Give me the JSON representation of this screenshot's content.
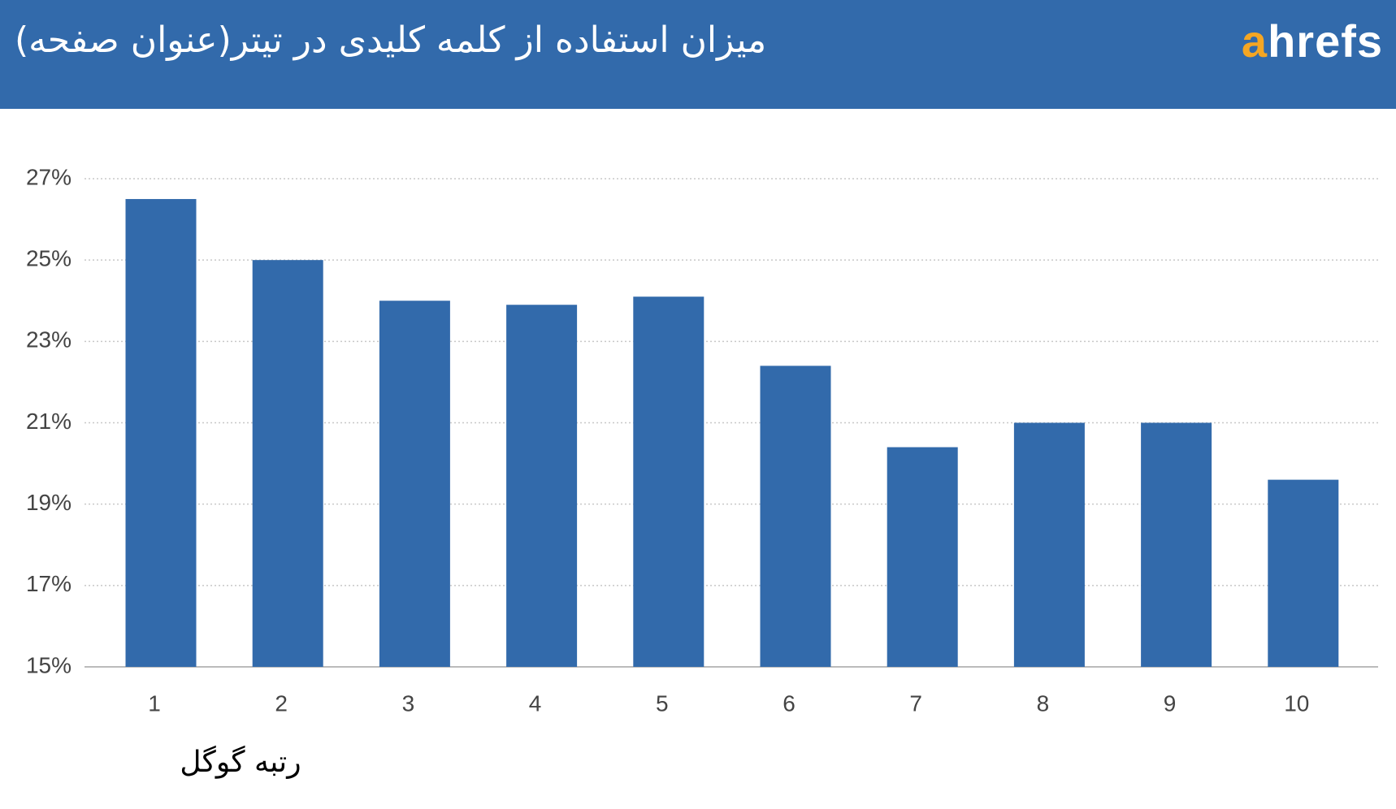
{
  "chart_data": {
    "type": "bar",
    "title": "میزان استفاده از کلمه کلیدی در تیتر(عنوان صفحه)",
    "brand": "ahrefs",
    "x_label": "رتبه گوگل",
    "categories": [
      "1",
      "2",
      "3",
      "4",
      "5",
      "6",
      "7",
      "8",
      "9",
      "10"
    ],
    "values": [
      26.5,
      25.0,
      24.0,
      23.9,
      24.1,
      22.4,
      20.4,
      21.0,
      21.0,
      19.6
    ],
    "color": "#326aab",
    "ylim": [
      15,
      27
    ],
    "yticks": [
      {
        "value": 15,
        "label": "15%"
      },
      {
        "value": 17,
        "label": "17%"
      },
      {
        "value": 19,
        "label": "19%"
      },
      {
        "value": 21,
        "label": "21%"
      },
      {
        "value": 23,
        "label": "23%"
      },
      {
        "value": 25,
        "label": "25%"
      },
      {
        "value": 27,
        "label": "27%"
      }
    ],
    "grid": true
  }
}
